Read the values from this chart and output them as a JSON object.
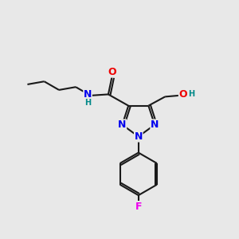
{
  "bg_color": "#e8e8e8",
  "bond_color": "#1a1a1a",
  "bond_width": 1.5,
  "atom_colors": {
    "N": "#0000ee",
    "O": "#ee0000",
    "F": "#ee00ee",
    "H": "#008888",
    "C": "#1a1a1a"
  },
  "font_size_atom": 9,
  "font_size_small": 7,
  "xlim": [
    0,
    10
  ],
  "ylim": [
    0.5,
    10.5
  ]
}
